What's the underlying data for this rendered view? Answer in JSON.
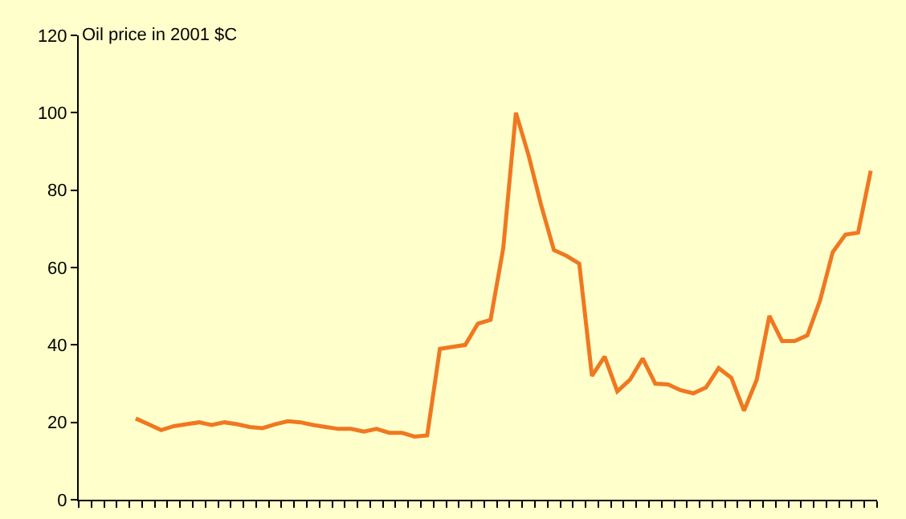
{
  "chart_data": {
    "type": "line",
    "ylabel": "Oil price in 2001 $C",
    "categories": [
      null,
      null,
      null,
      null,
      null,
      null,
      null,
      null,
      null,
      null,
      null,
      null,
      null,
      null,
      null,
      null,
      null,
      null,
      null,
      null,
      null,
      null,
      null,
      null,
      null,
      null,
      null,
      null,
      null,
      null,
      null,
      null,
      null,
      null,
      null,
      null,
      null,
      null,
      null,
      null,
      null,
      null,
      null,
      null,
      null,
      null,
      null,
      null,
      null,
      null,
      null,
      null,
      null,
      null,
      null,
      null,
      null,
      null,
      null,
      null,
      null,
      null,
      null
    ],
    "series": [
      {
        "color": "#f07820",
        "values": [
          null,
          null,
          null,
          null,
          21,
          19.5,
          18,
          19,
          19.5,
          20,
          19.3,
          20,
          19.5,
          18.8,
          18.5,
          19.5,
          20.3,
          20,
          19.3,
          18.8,
          18.3,
          18.3,
          17.6,
          18.3,
          17.3,
          17.3,
          16.3,
          16.6,
          39,
          39.5,
          40,
          45.5,
          46.5,
          65,
          100,
          89,
          76,
          64.5,
          63,
          61,
          32,
          37,
          28,
          31,
          36.5,
          30,
          29.8,
          28.3,
          27.5,
          29,
          34,
          31.5,
          23,
          31,
          47.5,
          41,
          41,
          42.5,
          51.5,
          64,
          68.5,
          69,
          85
        ]
      }
    ],
    "ylim": [
      0,
      120
    ],
    "yticks": [
      0,
      20,
      40,
      60,
      80,
      100,
      120
    ],
    "grid": false,
    "marker": "none",
    "line_style": "solid",
    "tick_labels": "y"
  }
}
